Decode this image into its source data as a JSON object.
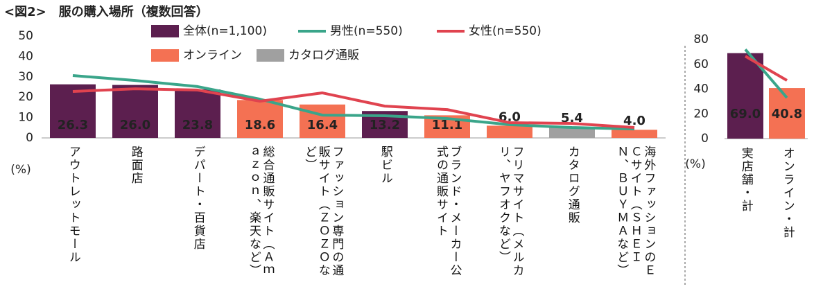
{
  "chart_data": [
    {
      "type": "bar",
      "title": "<図2>　服の購入場所（複数回答）",
      "unit": "(%)",
      "categories": [
        "アウトレットモール",
        "路面店",
        "デパート・百貨店",
        "総合通販サイト（Ａｍａｚｏｎ、楽天など）",
        "ファッション専門の通販サイト（ＺＯＺＯなど）",
        "駅ビル",
        "ブランド・メーカー公式の通販サイト",
        "フリマサイト（メルカリ、ヤフオクなど）",
        "カタログ通販",
        "海外ファッションのＥＣサイト（ＳＨＥＩＮ、ＢＵＹＭＡなど）"
      ],
      "ylim": [
        0,
        50
      ],
      "yticks": [
        0,
        10,
        20,
        30,
        40,
        50
      ],
      "grid": false,
      "series": [
        {
          "name": "全体(n=1,100)",
          "kind": "bar",
          "color": "#5c1f4f",
          "values": [
            26.3,
            26.0,
            23.8,
            null,
            null,
            13.2,
            null,
            null,
            null,
            null
          ],
          "value_labels": [
            "26.3",
            "26.0",
            "23.8",
            null,
            null,
            "13.2",
            null,
            null,
            null,
            null
          ]
        },
        {
          "name": "オンライン",
          "kind": "bar",
          "color": "#f47153",
          "values": [
            null,
            null,
            null,
            18.6,
            16.4,
            null,
            11.1,
            6.0,
            null,
            4.0
          ],
          "value_labels": [
            null,
            null,
            null,
            "18.6",
            "16.4",
            null,
            "11.1",
            "6.0",
            null,
            "4.0"
          ]
        },
        {
          "name": "カタログ通販",
          "kind": "bar",
          "color": "#a0a0a0",
          "values": [
            null,
            null,
            null,
            null,
            null,
            null,
            null,
            null,
            5.4,
            null
          ],
          "value_labels": [
            null,
            null,
            null,
            null,
            null,
            null,
            null,
            null,
            "5.4",
            null
          ]
        },
        {
          "name": "男性(n=550)",
          "kind": "line",
          "color": "#3aa58a",
          "values": [
            30.6,
            28.2,
            25.2,
            19.0,
            11.2,
            10.9,
            9.5,
            6.5,
            5.1,
            4.4
          ]
        },
        {
          "name": "女性(n=550)",
          "kind": "line",
          "color": "#e0434f",
          "values": [
            22.8,
            24.1,
            23.5,
            18.0,
            22.1,
            15.6,
            13.9,
            7.5,
            7.1,
            5.1
          ]
        }
      ]
    },
    {
      "type": "bar",
      "unit": "(%)",
      "categories": [
        "実店舗・計",
        "オンライン・計"
      ],
      "ylim": [
        0,
        80
      ],
      "yticks": [
        0,
        20,
        40,
        60,
        80
      ],
      "grid": false,
      "series": [
        {
          "kind": "bar",
          "color": "#5c1f4f",
          "values": [
            69.0,
            null
          ],
          "value_labels": [
            "69.0",
            null
          ]
        },
        {
          "kind": "bar",
          "color": "#f47153",
          "values": [
            null,
            40.8
          ],
          "value_labels": [
            null,
            "40.8"
          ]
        },
        {
          "kind": "line",
          "color": "#3aa58a",
          "values": [
            72,
            33
          ]
        },
        {
          "kind": "line",
          "color": "#e0434f",
          "values": [
            66.5,
            47
          ]
        }
      ]
    }
  ]
}
